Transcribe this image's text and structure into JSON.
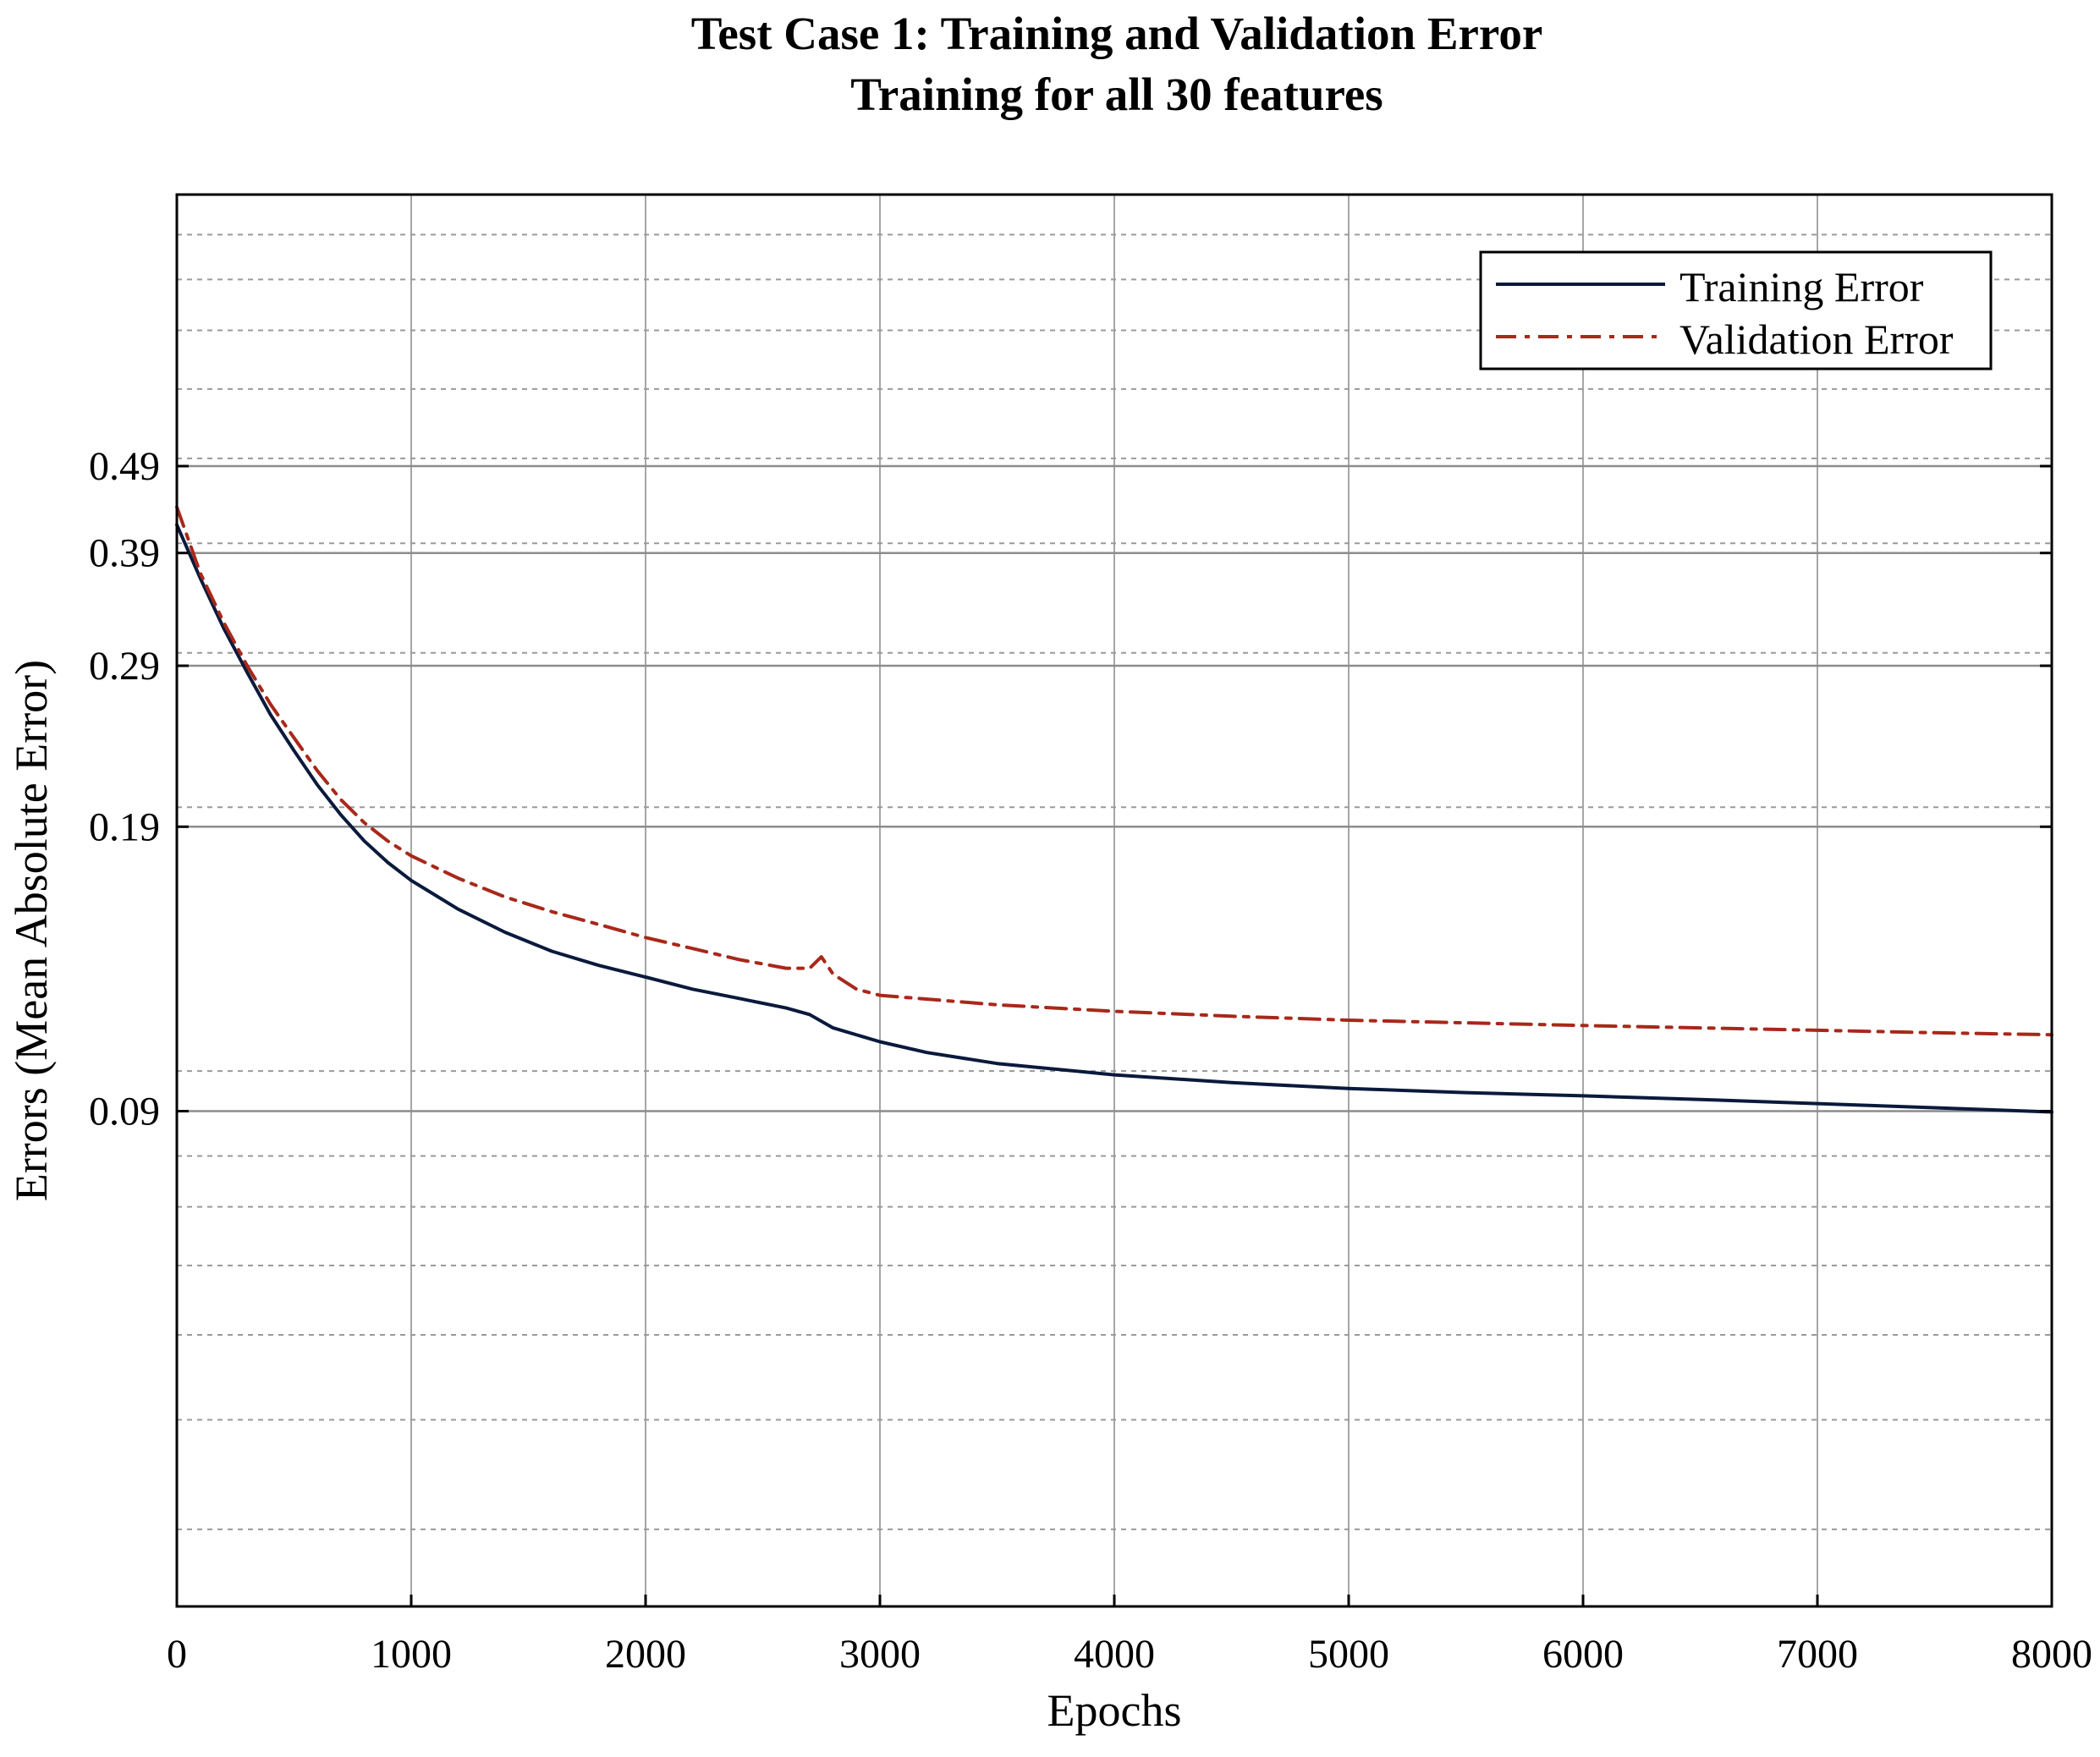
{
  "chart_data": {
    "type": "line",
    "title": "Test Case 1: Training and Validation Error",
    "subtitle": "Training for all 30 features",
    "xlabel": "Epochs",
    "ylabel": "Errors (Mean Absolute Error)",
    "scale": "log",
    "xlim": [
      0,
      8000
    ],
    "ylim": [
      0.0245,
      1.0
    ],
    "x_ticks": [
      0,
      1000,
      2000,
      3000,
      4000,
      5000,
      6000,
      7000,
      8000
    ],
    "y_ticks": [
      0.09,
      0.19,
      0.29,
      0.39,
      0.49
    ],
    "grid": true,
    "legend_position": "top-right",
    "series": [
      {
        "name": "Training Error",
        "color": "#0a1a3c",
        "style": "solid",
        "points": [
          [
            0,
            0.42
          ],
          [
            100,
            0.365
          ],
          [
            200,
            0.32
          ],
          [
            300,
            0.285
          ],
          [
            400,
            0.255
          ],
          [
            500,
            0.232
          ],
          [
            600,
            0.212
          ],
          [
            700,
            0.196
          ],
          [
            800,
            0.183
          ],
          [
            900,
            0.173
          ],
          [
            1000,
            0.165
          ],
          [
            1200,
            0.153
          ],
          [
            1400,
            0.144
          ],
          [
            1600,
            0.137
          ],
          [
            1800,
            0.132
          ],
          [
            2000,
            0.128
          ],
          [
            2200,
            0.124
          ],
          [
            2400,
            0.121
          ],
          [
            2600,
            0.118
          ],
          [
            2700,
            0.116
          ],
          [
            2800,
            0.112
          ],
          [
            3000,
            0.108
          ],
          [
            3200,
            0.105
          ],
          [
            3500,
            0.102
          ],
          [
            4000,
            0.099
          ],
          [
            4500,
            0.097
          ],
          [
            5000,
            0.0955
          ],
          [
            5500,
            0.0945
          ],
          [
            6000,
            0.0937
          ],
          [
            6500,
            0.0928
          ],
          [
            7000,
            0.0918
          ],
          [
            7500,
            0.0908
          ],
          [
            8000,
            0.0898
          ]
        ]
      },
      {
        "name": "Validation Error",
        "color": "#a8281a",
        "style": "dash-dot",
        "points": [
          [
            0,
            0.44
          ],
          [
            100,
            0.37
          ],
          [
            200,
            0.325
          ],
          [
            300,
            0.29
          ],
          [
            400,
            0.262
          ],
          [
            500,
            0.24
          ],
          [
            600,
            0.22
          ],
          [
            700,
            0.204
          ],
          [
            800,
            0.192
          ],
          [
            900,
            0.183
          ],
          [
            1000,
            0.176
          ],
          [
            1200,
            0.166
          ],
          [
            1400,
            0.158
          ],
          [
            1600,
            0.152
          ],
          [
            1800,
            0.147
          ],
          [
            2000,
            0.142
          ],
          [
            2200,
            0.138
          ],
          [
            2400,
            0.134
          ],
          [
            2600,
            0.131
          ],
          [
            2700,
            0.131
          ],
          [
            2750,
            0.135
          ],
          [
            2800,
            0.129
          ],
          [
            2900,
            0.124
          ],
          [
            3000,
            0.122
          ],
          [
            3500,
            0.119
          ],
          [
            4000,
            0.117
          ],
          [
            4500,
            0.1155
          ],
          [
            5000,
            0.1143
          ],
          [
            5500,
            0.1135
          ],
          [
            6000,
            0.1127
          ],
          [
            6500,
            0.112
          ],
          [
            7000,
            0.1113
          ],
          [
            7500,
            0.1106
          ],
          [
            8000,
            0.11
          ]
        ]
      }
    ]
  }
}
